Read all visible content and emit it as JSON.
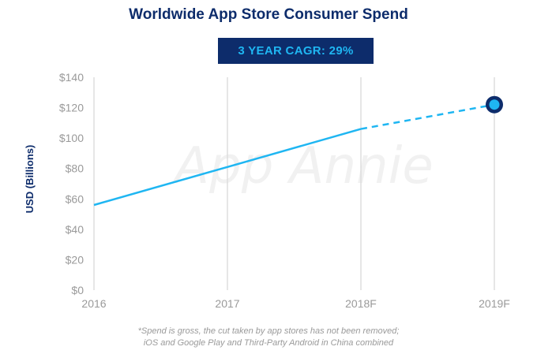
{
  "chart_data": {
    "type": "line",
    "title": "Worldwide App Store Consumer Spend",
    "subtitle": "3 YEAR CAGR: 29%",
    "ylabel": "USD (Billions)",
    "xlabel": "",
    "categories": [
      "2016",
      "2017",
      "2018F",
      "2019F"
    ],
    "x_tick_labels": [
      "2016",
      "2017",
      "2018F",
      "2019F"
    ],
    "y_tick_labels": [
      "$0",
      "$20",
      "$40",
      "$60",
      "$80",
      "$100",
      "$120",
      "$140"
    ],
    "y_ticks": [
      0,
      20,
      40,
      60,
      80,
      100,
      120,
      140
    ],
    "ylim": [
      0,
      140
    ],
    "grid": "vertical",
    "series": [
      {
        "values": [
          56,
          81,
          106,
          122
        ],
        "forecast_from_index": 2,
        "color": "#1fb6f2"
      }
    ],
    "highlight_point": {
      "category": "2019F",
      "value": 122
    },
    "annotations": [
      "*Spend is gross, the cut taken by app stores has not been removed;",
      "iOS and Google Play and Third-Party Android in China combined"
    ]
  },
  "watermark": "App Annie",
  "colors": {
    "title": "#0d2c6b",
    "badge_bg": "#0d2c6b",
    "badge_text": "#1fb6f2",
    "line": "#1fb6f2",
    "grid": "#d6d6d6",
    "tick": "#9a9a9a"
  }
}
